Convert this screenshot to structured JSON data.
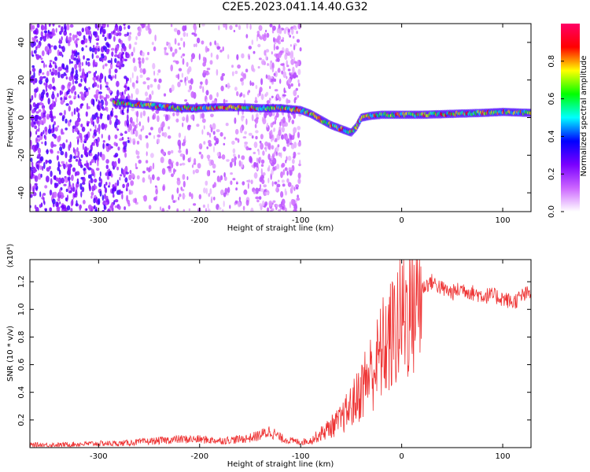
{
  "title": "C2E5.2023.041.14.40.G32",
  "chart_data": [
    {
      "type": "heatmap",
      "title": "C2E5.2023.041.14.40.G32",
      "xlabel": "Height of straight line (km)",
      "ylabel": "Frequency (Hz)",
      "xlim": [
        -368,
        128
      ],
      "ylim": [
        -50,
        50
      ],
      "x_ticks": [
        -300,
        -200,
        -100,
        0,
        100
      ],
      "y_ticks": [
        -40,
        -20,
        0,
        20,
        40
      ],
      "ridge": {
        "description": "frequency ridge (Hz) vs height (km)",
        "x": [
          -280,
          -260,
          -240,
          -220,
          -200,
          -180,
          -160,
          -140,
          -120,
          -100,
          -90,
          -80,
          -70,
          -60,
          -50,
          -45,
          -40,
          -30,
          -20,
          0,
          20,
          50,
          80,
          100,
          128
        ],
        "y": [
          8,
          7,
          6,
          5,
          5,
          5.5,
          5.5,
          5,
          5,
          4,
          2,
          -1,
          -4,
          -6,
          -8,
          -5,
          0,
          1,
          1.5,
          1.5,
          1.5,
          2,
          2.5,
          3,
          2.5
        ]
      },
      "colorbar": {
        "label": "Normalized spectral amplitude",
        "range": [
          0,
          1
        ],
        "ticks": [
          0.0,
          0.2,
          0.4,
          0.6,
          0.8
        ],
        "colors": [
          "#ffffff",
          "#cc66ff",
          "#7a00ff",
          "#0000ff",
          "#00ffff",
          "#00ff00",
          "#ffff00",
          "#ff0000",
          "#ff0066"
        ]
      }
    },
    {
      "type": "line",
      "xlabel": "Height of straight line (km)",
      "ylabel": "SNR (10 * v/v)",
      "y_multiplier": "(x10⁴)",
      "xlim": [
        -368,
        128
      ],
      "ylim": [
        0,
        1.36
      ],
      "x_ticks": [
        -300,
        -200,
        -100,
        0,
        100
      ],
      "y_ticks": [
        0.2,
        0.4,
        0.6,
        0.8,
        1.0,
        1.2
      ],
      "series": [
        {
          "name": "SNR",
          "color": "#ee3333",
          "x": [
            -368,
            -340,
            -320,
            -300,
            -280,
            -260,
            -240,
            -220,
            -200,
            -180,
            -160,
            -150,
            -140,
            -130,
            -120,
            -110,
            -100,
            -90,
            -80,
            -70,
            -60,
            -50,
            -45,
            -40,
            -35,
            -30,
            -25,
            -20,
            -15,
            -10,
            -5,
            0,
            5,
            10,
            15,
            20,
            25,
            30,
            40,
            50,
            60,
            70,
            80,
            90,
            100,
            110,
            120,
            128
          ],
          "values": [
            0.02,
            0.02,
            0.025,
            0.03,
            0.03,
            0.04,
            0.05,
            0.06,
            0.06,
            0.05,
            0.06,
            0.07,
            0.09,
            0.12,
            0.07,
            0.05,
            0.04,
            0.05,
            0.1,
            0.15,
            0.2,
            0.3,
            0.35,
            0.42,
            0.5,
            0.55,
            0.6,
            0.7,
            0.75,
            0.8,
            0.88,
            0.95,
            1.0,
            1.05,
            1.1,
            1.15,
            1.18,
            1.2,
            1.15,
            1.12,
            1.15,
            1.12,
            1.1,
            1.1,
            1.08,
            1.05,
            1.1,
            1.12
          ]
        }
      ]
    }
  ]
}
